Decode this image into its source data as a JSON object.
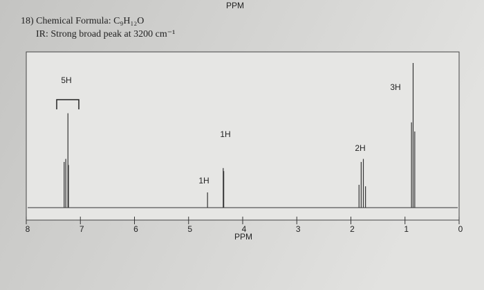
{
  "header": "PPM",
  "problem": {
    "title": "18) Chemical Formula: C₉H₁₂O",
    "subtitle": "IR: Strong broad peak at 3200 cm⁻¹"
  },
  "chart_data": {
    "type": "stem",
    "x": [
      7.3,
      7.27,
      7.23,
      7.22,
      4.65,
      4.36,
      4.35,
      1.85,
      1.81,
      1.77,
      1.73,
      0.88,
      0.85,
      0.82
    ],
    "values": [
      30,
      32,
      62,
      28,
      10,
      26,
      24,
      15,
      30,
      32,
      14,
      56,
      95,
      50
    ],
    "color": "#333333",
    "xlim": [
      8,
      0
    ],
    "ylim": [
      0,
      100
    ],
    "xticks": [
      8,
      7,
      6,
      5,
      4,
      3,
      2,
      1,
      0
    ],
    "x_label": "PPM",
    "annotations": [
      "5H",
      "1H",
      "1H",
      "2H",
      "3H"
    ]
  }
}
